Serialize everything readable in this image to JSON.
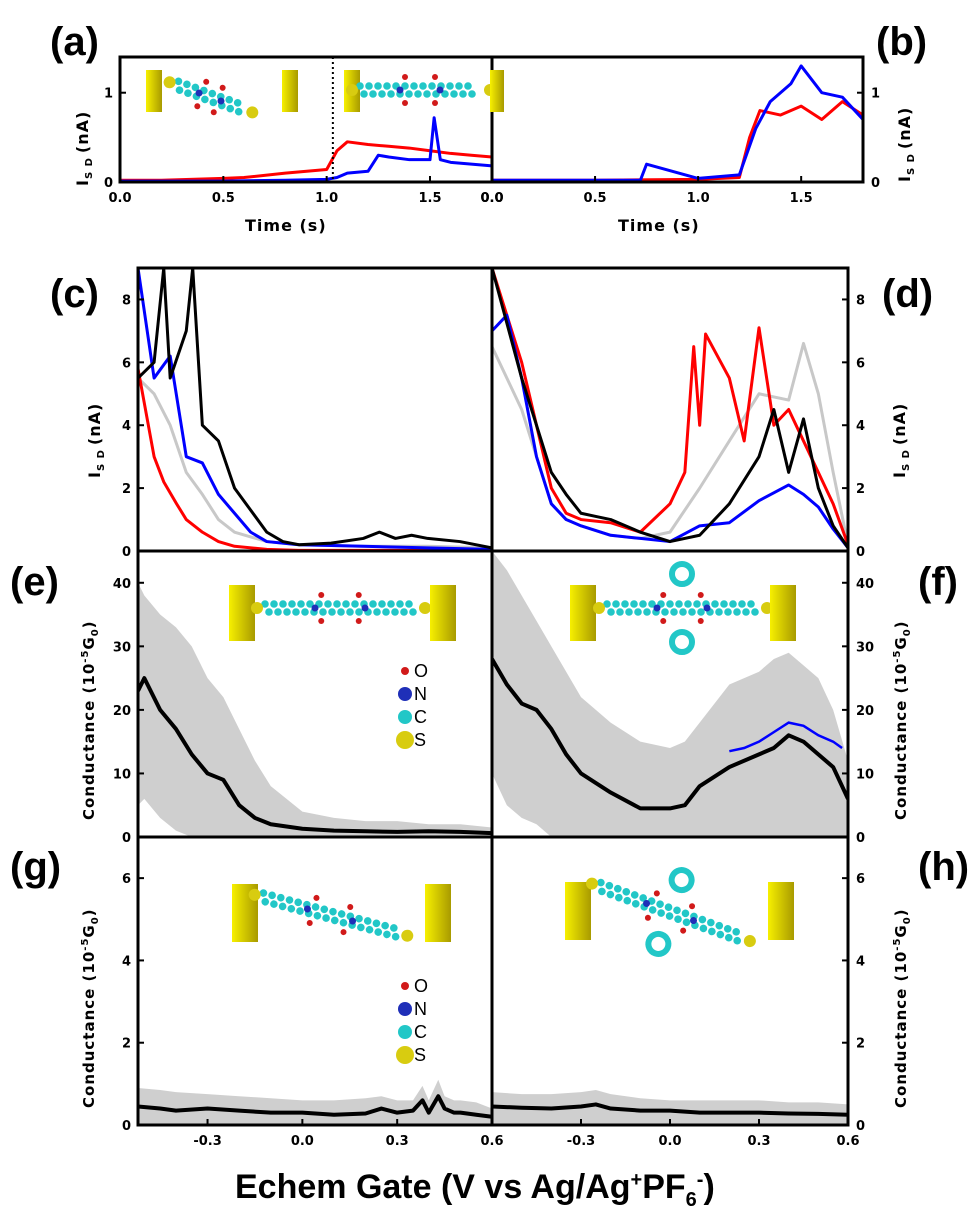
{
  "figure": {
    "panel_tags": [
      "(a)",
      "(b)",
      "(c)",
      "(d)",
      "(e)",
      "(f)",
      "(g)",
      "(h)"
    ],
    "x_title_main": "Echem Gate (V vs Ag/Ag",
    "x_title_sup": "+",
    "x_title_mid": "PF",
    "x_title_sub": "6",
    "x_title_sup2": "-",
    "x_title_end": ")",
    "time_label": "Time (s)",
    "isd_label_main": "I",
    "isd_label_sub": "S D",
    "isd_label_unit": "(nA)",
    "cond_label": "Conductance (10",
    "cond_label_sup": "-5",
    "cond_label_g": "G",
    "cond_label_sub": "0",
    "cond_label_end": ")",
    "legend_items": [
      {
        "symbol": "O",
        "color": "#d11a1a"
      },
      {
        "symbol": "N",
        "color": "#1f2fb8"
      },
      {
        "symbol": "C",
        "color": "#22c7c7"
      },
      {
        "symbol": "S",
        "color": "#d8cc10"
      }
    ],
    "colors": {
      "red": "#ff0000",
      "blue": "#0000ff",
      "black": "#000000",
      "gray": "#c8c8c8",
      "band": "#cfcfcf",
      "gold": "#e8e000"
    }
  },
  "chart_data": [
    {
      "id": "a",
      "type": "line",
      "xlabel": "Time (s)",
      "ylabel": "I S D (nA)",
      "xlim": [
        0,
        1.8
      ],
      "ylim": [
        0,
        1.4
      ],
      "xticks": [
        "0.0",
        "0.5",
        "1.0",
        "1.5"
      ],
      "yticks": [
        "0",
        "1"
      ],
      "series": [
        {
          "color": "red",
          "x": [
            0,
            0.2,
            0.5,
            0.6,
            0.8,
            1.0,
            1.05,
            1.1,
            1.2,
            1.3,
            1.4,
            1.5,
            1.6,
            1.7,
            1.8
          ],
          "y": [
            0.02,
            0.02,
            0.04,
            0.05,
            0.1,
            0.14,
            0.35,
            0.45,
            0.42,
            0.4,
            0.38,
            0.35,
            0.32,
            0.3,
            0.28
          ]
        },
        {
          "color": "blue",
          "x": [
            0,
            0.5,
            0.8,
            1.0,
            1.05,
            1.1,
            1.2,
            1.25,
            1.3,
            1.4,
            1.5,
            1.52,
            1.55,
            1.6,
            1.7,
            1.8
          ],
          "y": [
            0.01,
            0.01,
            0.02,
            0.03,
            0.05,
            0.1,
            0.12,
            0.3,
            0.28,
            0.25,
            0.25,
            0.72,
            0.25,
            0.22,
            0.2,
            0.18
          ]
        }
      ]
    },
    {
      "id": "b",
      "type": "line",
      "xlabel": "Time (s)",
      "ylabel": "I S D (nA)",
      "xlim": [
        0,
        1.8
      ],
      "ylim": [
        0,
        1.4
      ],
      "xticks": [
        "0.0",
        "0.5",
        "1.0",
        "1.5"
      ],
      "yticks": [
        "0",
        "1"
      ],
      "series": [
        {
          "color": "red",
          "x": [
            0,
            0.5,
            1.0,
            1.2,
            1.25,
            1.3,
            1.4,
            1.5,
            1.6,
            1.7,
            1.8
          ],
          "y": [
            0.02,
            0.02,
            0.03,
            0.05,
            0.5,
            0.8,
            0.75,
            0.85,
            0.7,
            0.9,
            0.75
          ]
        },
        {
          "color": "blue",
          "x": [
            0,
            0.5,
            0.72,
            0.75,
            1.0,
            1.2,
            1.28,
            1.35,
            1.45,
            1.5,
            1.6,
            1.7,
            1.8
          ],
          "y": [
            0.02,
            0.02,
            0.02,
            0.2,
            0.04,
            0.08,
            0.6,
            0.9,
            1.1,
            1.3,
            1.0,
            0.95,
            0.7
          ]
        }
      ]
    },
    {
      "id": "c",
      "type": "line",
      "xlabel": "Echem Gate (V vs Ag/Ag+PF6-)",
      "ylabel": "I S D (nA)",
      "xlim": [
        -0.5,
        0.6
      ],
      "ylim": [
        0,
        9
      ],
      "yticks": [
        "0",
        "2",
        "4",
        "6",
        "8"
      ],
      "series": [
        {
          "color": "gray",
          "x": [
            -0.5,
            -0.45,
            -0.4,
            -0.35,
            -0.3,
            -0.25,
            -0.2,
            -0.1,
            0.0,
            0.2,
            0.4,
            0.6
          ],
          "y": [
            5.5,
            5.0,
            4.0,
            2.5,
            1.8,
            1.0,
            0.6,
            0.3,
            0.2,
            0.15,
            0.15,
            0.1
          ]
        },
        {
          "color": "red",
          "x": [
            -0.5,
            -0.45,
            -0.42,
            -0.38,
            -0.35,
            -0.3,
            -0.25,
            -0.2,
            -0.1,
            0.0,
            0.2,
            0.4,
            0.6
          ],
          "y": [
            5.8,
            3.0,
            2.2,
            1.5,
            1.0,
            0.6,
            0.3,
            0.15,
            0.05,
            0.02,
            0.02,
            0.02,
            0.02
          ]
        },
        {
          "color": "blue",
          "x": [
            -0.5,
            -0.45,
            -0.4,
            -0.35,
            -0.3,
            -0.25,
            -0.2,
            -0.15,
            -0.1,
            0.0,
            0.2,
            0.4,
            0.6
          ],
          "y": [
            9,
            5.5,
            6.2,
            3.0,
            2.8,
            1.8,
            1.2,
            0.6,
            0.3,
            0.2,
            0.15,
            0.1,
            0.05
          ]
        },
        {
          "color": "black",
          "x": [
            -0.5,
            -0.45,
            -0.42,
            -0.4,
            -0.35,
            -0.33,
            -0.3,
            -0.25,
            -0.2,
            -0.1,
            -0.05,
            0.0,
            0.1,
            0.2,
            0.25,
            0.3,
            0.35,
            0.4,
            0.5,
            0.6
          ],
          "y": [
            5.5,
            6.0,
            9,
            5.5,
            7.0,
            9,
            4.0,
            3.5,
            2.0,
            0.6,
            0.3,
            0.2,
            0.25,
            0.4,
            0.6,
            0.4,
            0.5,
            0.4,
            0.3,
            0.1
          ]
        }
      ]
    },
    {
      "id": "d",
      "type": "line",
      "xlabel": "Echem Gate (V vs Ag/Ag+PF6-)",
      "ylabel": "I S D (nA)",
      "xlim": [
        -0.6,
        0.6
      ],
      "ylim": [
        0,
        9
      ],
      "yticks": [
        "0",
        "2",
        "4",
        "6",
        "8"
      ],
      "series": [
        {
          "color": "gray",
          "x": [
            -0.6,
            -0.5,
            -0.45,
            -0.4,
            -0.35,
            -0.3,
            -0.2,
            -0.1,
            0.0,
            0.1,
            0.2,
            0.3,
            0.4,
            0.45,
            0.5,
            0.55,
            0.6
          ],
          "y": [
            6.5,
            4.5,
            3.0,
            1.5,
            1.0,
            0.8,
            0.5,
            0.4,
            0.6,
            2.0,
            3.5,
            5.0,
            4.8,
            6.6,
            5.0,
            2.5,
            0.2
          ]
        },
        {
          "color": "red",
          "x": [
            -0.6,
            -0.55,
            -0.5,
            -0.45,
            -0.4,
            -0.35,
            -0.3,
            -0.2,
            -0.1,
            0.0,
            0.05,
            0.08,
            0.1,
            0.12,
            0.2,
            0.25,
            0.3,
            0.35,
            0.4,
            0.45,
            0.5,
            0.55,
            0.6
          ],
          "y": [
            9,
            7.5,
            6.0,
            4.0,
            2.0,
            1.2,
            1.0,
            0.9,
            0.6,
            1.5,
            2.5,
            6.5,
            4.0,
            6.9,
            5.5,
            3.5,
            7.1,
            4.0,
            4.5,
            3.5,
            2.5,
            1.5,
            0.2
          ]
        },
        {
          "color": "blue",
          "x": [
            -0.6,
            -0.55,
            -0.5,
            -0.45,
            -0.4,
            -0.35,
            -0.3,
            -0.2,
            -0.1,
            0.0,
            0.1,
            0.2,
            0.3,
            0.4,
            0.45,
            0.5,
            0.55,
            0.6
          ],
          "y": [
            7.0,
            7.5,
            5.5,
            3.0,
            1.5,
            1.0,
            0.8,
            0.5,
            0.4,
            0.3,
            0.8,
            0.9,
            1.6,
            2.1,
            1.8,
            1.4,
            0.7,
            0.1
          ]
        },
        {
          "color": "black",
          "x": [
            -0.6,
            -0.5,
            -0.45,
            -0.4,
            -0.35,
            -0.3,
            -0.25,
            -0.2,
            -0.1,
            0.0,
            0.1,
            0.2,
            0.3,
            0.35,
            0.4,
            0.45,
            0.5,
            0.55,
            0.6
          ],
          "y": [
            9,
            5.5,
            4.0,
            2.5,
            1.8,
            1.2,
            1.1,
            1.0,
            0.6,
            0.3,
            0.5,
            1.5,
            3.0,
            4.5,
            2.5,
            4.2,
            2.0,
            0.8,
            0.1
          ]
        }
      ]
    },
    {
      "id": "e",
      "type": "area",
      "xlabel": "Echem Gate (V vs Ag/Ag+PF6-)",
      "ylabel": "Conductance (10^-5 G0)",
      "xlim": [
        -0.52,
        0.6
      ],
      "ylim": [
        0,
        45
      ],
      "yticks": [
        "0",
        "10",
        "20",
        "30",
        "40"
      ],
      "mean": {
        "x": [
          -0.52,
          -0.5,
          -0.45,
          -0.4,
          -0.35,
          -0.3,
          -0.25,
          -0.2,
          -0.15,
          -0.1,
          0.0,
          0.1,
          0.2,
          0.3,
          0.4,
          0.5,
          0.6
        ],
        "y": [
          23,
          25,
          20,
          17,
          13,
          10,
          9,
          5,
          3,
          2,
          1.3,
          1.0,
          0.9,
          0.8,
          0.9,
          0.8,
          0.6
        ]
      },
      "upper": [
        40,
        38,
        35,
        33,
        30,
        25,
        22,
        17,
        12,
        8,
        4,
        3,
        2.5,
        2.5,
        2,
        2,
        1.5
      ],
      "lower": [
        5,
        6,
        3,
        1,
        0,
        0,
        0,
        0,
        0,
        0,
        0,
        0,
        0,
        0,
        0,
        0,
        0
      ]
    },
    {
      "id": "f",
      "type": "area",
      "xlabel": "Echem Gate (V vs Ag/Ag+PF6-)",
      "ylabel": "Conductance (10^-5 G0)",
      "xlim": [
        -0.6,
        0.6
      ],
      "ylim": [
        0,
        45
      ],
      "yticks": [
        "0",
        "10",
        "20",
        "30",
        "40"
      ],
      "mean": {
        "x": [
          -0.6,
          -0.55,
          -0.5,
          -0.45,
          -0.4,
          -0.35,
          -0.3,
          -0.2,
          -0.1,
          0.0,
          0.05,
          0.1,
          0.2,
          0.3,
          0.35,
          0.4,
          0.45,
          0.5,
          0.55,
          0.6
        ],
        "y": [
          28,
          24,
          21,
          20,
          17,
          13,
          10,
          7,
          4.5,
          4.5,
          5,
          8,
          11,
          13,
          14,
          16,
          15,
          13,
          11,
          6
        ]
      },
      "upper": [
        45,
        42,
        38,
        34,
        30,
        26,
        22,
        18,
        15,
        14,
        15,
        18,
        24,
        26,
        28,
        29,
        27,
        25,
        20,
        12
      ],
      "lower": [
        10,
        5,
        3,
        2,
        0,
        0,
        0,
        0,
        0,
        0,
        0,
        0,
        0,
        0,
        0,
        0,
        0,
        0,
        0,
        0
      ],
      "fit": {
        "x": [
          0.2,
          0.25,
          0.3,
          0.35,
          0.4,
          0.45,
          0.5,
          0.55,
          0.58
        ],
        "y": [
          13.5,
          14,
          15,
          16.5,
          18,
          17.5,
          16,
          15,
          14
        ]
      }
    },
    {
      "id": "g",
      "type": "area",
      "xlabel": "Echem Gate (V vs Ag/Ag+PF6-)",
      "ylabel": "Conductance (10^-5 G0)",
      "xlim": [
        -0.52,
        0.6
      ],
      "ylim": [
        0,
        7
      ],
      "yticks": [
        "0",
        "2",
        "4",
        "6"
      ],
      "xticks": [
        "-0.3",
        "0.0",
        "0.3"
      ],
      "mean": {
        "x": [
          -0.52,
          -0.45,
          -0.4,
          -0.3,
          -0.2,
          -0.1,
          0.0,
          0.1,
          0.2,
          0.25,
          0.3,
          0.35,
          0.38,
          0.4,
          0.43,
          0.45,
          0.48,
          0.5,
          0.55,
          0.6
        ],
        "y": [
          0.45,
          0.4,
          0.35,
          0.4,
          0.35,
          0.3,
          0.3,
          0.25,
          0.28,
          0.4,
          0.3,
          0.35,
          0.6,
          0.3,
          0.7,
          0.4,
          0.3,
          0.3,
          0.25,
          0.2
        ]
      },
      "upper": [
        0.9,
        0.85,
        0.8,
        0.75,
        0.7,
        0.65,
        0.6,
        0.6,
        0.65,
        0.7,
        0.6,
        0.6,
        0.95,
        0.6,
        1.1,
        0.7,
        0.6,
        0.6,
        0.55,
        0.4
      ],
      "lower": [
        0,
        0,
        0,
        0,
        0,
        0,
        0,
        0,
        0,
        0,
        0,
        0,
        0,
        0,
        0,
        0,
        0,
        0,
        0,
        0
      ]
    },
    {
      "id": "h",
      "type": "area",
      "xlabel": "Echem Gate (V vs Ag/Ag+PF6-)",
      "ylabel": "Conductance (10^-5 G0)",
      "xlim": [
        -0.6,
        0.6
      ],
      "ylim": [
        0,
        7
      ],
      "yticks": [
        "0",
        "2",
        "4",
        "6"
      ],
      "xticks": [
        "-0.3",
        "0.0",
        "0.3",
        "0.6"
      ],
      "mean": {
        "x": [
          -0.6,
          -0.5,
          -0.4,
          -0.3,
          -0.25,
          -0.2,
          -0.1,
          0.0,
          0.1,
          0.2,
          0.3,
          0.4,
          0.5,
          0.6
        ],
        "y": [
          0.45,
          0.42,
          0.4,
          0.45,
          0.5,
          0.4,
          0.35,
          0.35,
          0.3,
          0.3,
          0.3,
          0.28,
          0.27,
          0.25
        ]
      },
      "upper": [
        0.8,
        0.75,
        0.75,
        0.8,
        0.85,
        0.75,
        0.65,
        0.6,
        0.6,
        0.6,
        0.6,
        0.55,
        0.55,
        0.5
      ],
      "lower": [
        0,
        0,
        0,
        0,
        0,
        0,
        0,
        0,
        0,
        0,
        0,
        0,
        0,
        0
      ]
    }
  ]
}
